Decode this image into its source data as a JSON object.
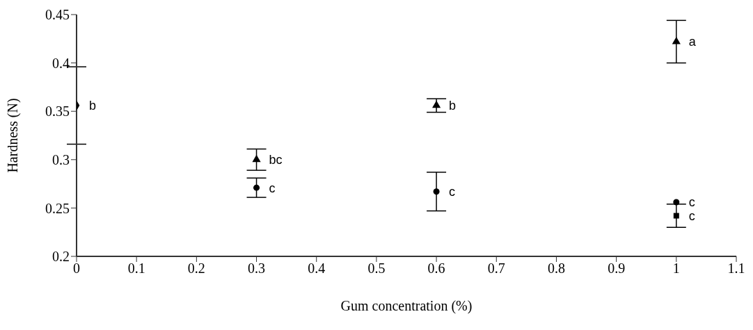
{
  "chart_data": {
    "type": "scatter",
    "xlabel": "Gum concentration (%)",
    "ylabel": "Hardness (N)",
    "xlim": [
      0,
      1.1
    ],
    "xticks": [
      0,
      0.1,
      0.2,
      0.3,
      0.4,
      0.5,
      0.6,
      0.7,
      0.8,
      0.9,
      1,
      1.1
    ],
    "ylim": [
      0.2,
      0.45
    ],
    "yticks": [
      0.2,
      0.25,
      0.3,
      0.35,
      0.4,
      0.45
    ],
    "grid": false,
    "legend": false,
    "series": [
      {
        "color": "#000000",
        "marker": "diamond",
        "x": [
          0
        ],
        "values": [
          0.356
        ],
        "errors": [
          0.04
        ]
      },
      {
        "color": "#000000",
        "marker": "circle",
        "x": [
          0.3,
          0.6,
          1
        ],
        "values": [
          0.271,
          0.267,
          0.256
        ],
        "errors": [
          0.01,
          0.02,
          null
        ]
      },
      {
        "color": "#000000",
        "marker": "triangle",
        "x": [
          0.3,
          0.6,
          1
        ],
        "values": [
          0.3,
          0.356,
          0.422
        ],
        "errors": [
          0.011,
          0.007,
          0.022
        ]
      },
      {
        "color": "#000000",
        "marker": "square",
        "x": [
          1
        ],
        "values": [
          0.242
        ],
        "errors": [
          0.012
        ]
      }
    ],
    "annotations": [
      {
        "text": "b",
        "x": 0,
        "y": 0.356
      },
      {
        "text": "bc",
        "x": 0.3,
        "y": 0.3
      },
      {
        "text": "c",
        "x": 0.3,
        "y": 0.271
      },
      {
        "text": "b",
        "x": 0.6,
        "y": 0.356
      },
      {
        "text": "c",
        "x": 0.6,
        "y": 0.267
      },
      {
        "text": "a",
        "x": 1,
        "y": 0.422
      },
      {
        "text": "c",
        "x": 1,
        "y": 0.256
      },
      {
        "text": "c",
        "x": 1,
        "y": 0.242
      }
    ]
  }
}
